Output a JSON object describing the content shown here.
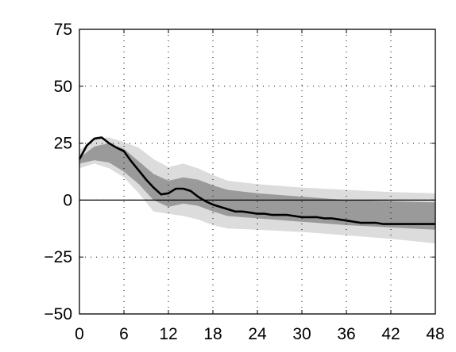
{
  "chart_data": {
    "type": "line",
    "title": "",
    "xlabel": "",
    "ylabel": "",
    "xlim": [
      0,
      48
    ],
    "ylim": [
      -50,
      75
    ],
    "grid": true,
    "x_ticks": [
      "0",
      "6",
      "12",
      "18",
      "24",
      "30",
      "36",
      "42",
      "48"
    ],
    "y_ticks": [
      "75",
      "50",
      "25",
      "0",
      "−25",
      "−50"
    ],
    "zero_line": 0,
    "colors": {
      "line": "#000000",
      "inner_band": "#9a9a9a",
      "outer_band": "#dcdcdc"
    },
    "series": [
      {
        "x": [
          0,
          1,
          2,
          3,
          4,
          5,
          6,
          7,
          8,
          9,
          10,
          11,
          12,
          13,
          14,
          15,
          16,
          17,
          18,
          19,
          20,
          21,
          22,
          23,
          24,
          25,
          26,
          27,
          28,
          29,
          30,
          31,
          32,
          33,
          34,
          35,
          36,
          37,
          38,
          39,
          40,
          41,
          42,
          43,
          44,
          45,
          46,
          47,
          48
        ],
        "values": [
          18,
          24,
          27,
          27.5,
          25,
          23,
          21.5,
          17,
          13,
          9,
          5.5,
          2.5,
          3,
          5,
          5,
          4,
          1.5,
          -0.5,
          -2,
          -3,
          -4,
          -5,
          -5,
          -5.5,
          -6,
          -6,
          -6.5,
          -6.5,
          -6.5,
          -7,
          -7.5,
          -7.5,
          -7.5,
          -8,
          -8,
          -8.5,
          -9,
          -9.5,
          -10,
          -10,
          -10,
          -10.5,
          -10.5,
          -10.5,
          -10.5,
          -10.5,
          -10.5,
          -10.5,
          -10.5
        ]
      }
    ],
    "bands": [
      {
        "level": "outer",
        "x": [
          0,
          2,
          4,
          6,
          8,
          10,
          12,
          14,
          16,
          18,
          20,
          24,
          30,
          36,
          42,
          48
        ],
        "upper": [
          22,
          27,
          27.5,
          25.5,
          23,
          18,
          14.5,
          16,
          14,
          11,
          8.5,
          7,
          5.5,
          4.5,
          3.5,
          3
        ],
        "lower": [
          14,
          16,
          14,
          10,
          3,
          -5,
          -6,
          -7,
          -8.5,
          -11,
          -12.5,
          -13,
          -14,
          -15.5,
          -17,
          -19
        ]
      },
      {
        "level": "inner",
        "x": [
          0,
          2,
          4,
          6,
          8,
          10,
          12,
          14,
          16,
          18,
          20,
          24,
          30,
          36,
          42,
          48
        ],
        "upper": [
          18.5,
          23.5,
          25,
          22.5,
          17,
          11.5,
          8.5,
          10,
          9,
          6.5,
          4.5,
          3,
          1.5,
          0,
          -0.5,
          -1
        ],
        "lower": [
          16,
          17.5,
          16.5,
          12.5,
          7,
          0,
          -3,
          -1.5,
          -2.5,
          -5,
          -7,
          -8,
          -9.5,
          -11,
          -12,
          -13
        ]
      }
    ]
  }
}
